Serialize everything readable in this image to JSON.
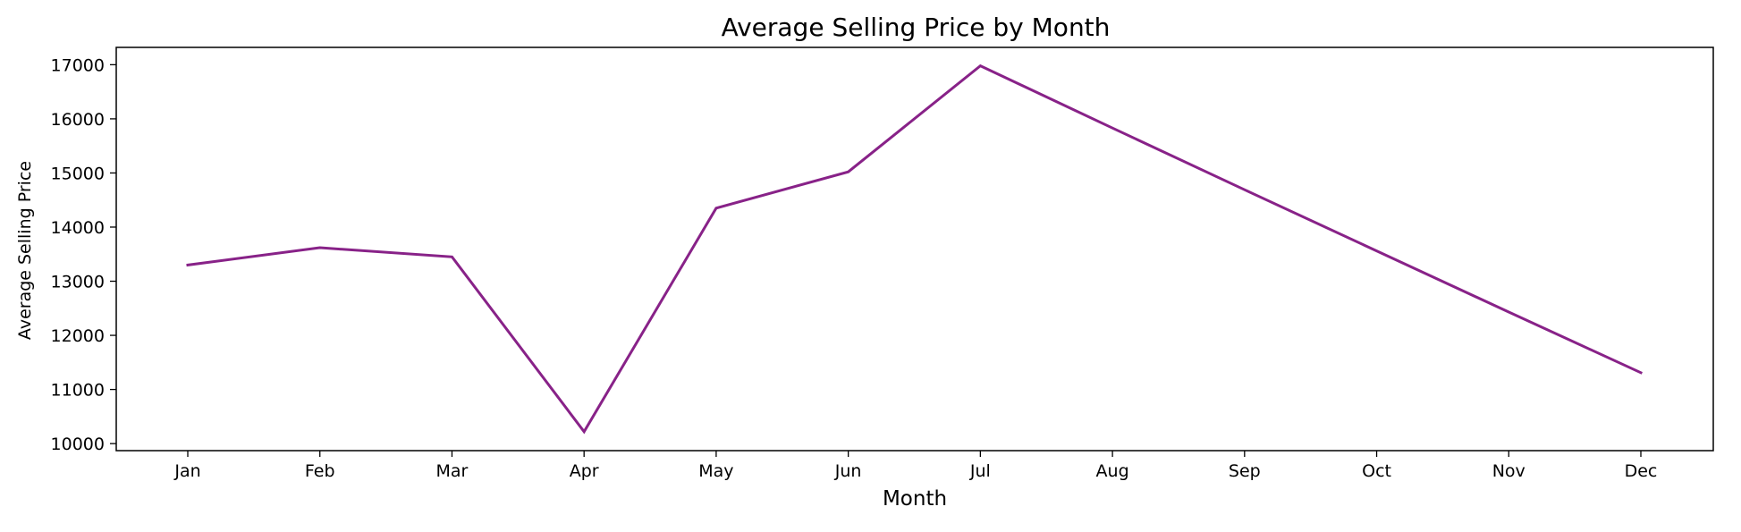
{
  "chart_data": {
    "type": "line",
    "title": "Average Selling Price by Month",
    "xlabel": "Month",
    "ylabel": "Average Selling Price",
    "categories": [
      "Jan",
      "Feb",
      "Mar",
      "Apr",
      "May",
      "Jun",
      "Jul",
      "Aug",
      "Sep",
      "Oct",
      "Nov",
      "Dec"
    ],
    "series": [
      {
        "values": [
          13300,
          13620,
          13450,
          10220,
          14350,
          15020,
          16980,
          15830,
          14690,
          13560,
          12430,
          11310
        ],
        "color": "#882288"
      }
    ],
    "yticks": [
      10000,
      11000,
      12000,
      13000,
      14000,
      15000,
      16000,
      17000
    ],
    "ylim": [
      9870,
      17320
    ],
    "grid": false,
    "legend": "none"
  }
}
